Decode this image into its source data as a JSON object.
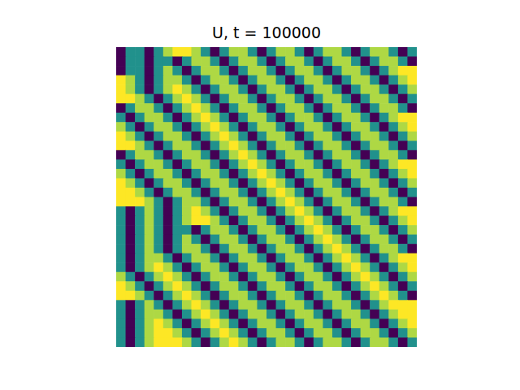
{
  "chart_data": {
    "type": "heatmap",
    "title": "U, t = 100000",
    "color": "viridis",
    "tick_labels": false,
    "cells": [
      [
        0.1,
        0.5,
        0.5,
        0.1,
        0.5,
        0.8,
        0.9,
        0.9,
        0.8,
        0.5,
        0.1,
        0.5,
        0.8,
        0.8,
        0.5,
        0.1,
        0.5,
        0.8,
        0.8,
        0.5,
        0.1,
        0.5,
        0.8,
        0.8,
        0.5,
        0.1,
        0.5,
        0.8,
        0.8,
        0.5,
        0.1,
        0.5
      ],
      [
        0.1,
        0.5,
        0.5,
        0.1,
        0.5,
        0.5,
        0.1,
        0.5,
        0.8,
        0.8,
        0.5,
        0.1,
        0.5,
        0.8,
        0.8,
        0.5,
        0.1,
        0.5,
        0.8,
        0.8,
        0.5,
        0.1,
        0.5,
        0.8,
        0.8,
        0.5,
        0.1,
        0.5,
        0.8,
        0.8,
        0.5,
        0.1
      ],
      [
        0.1,
        0.5,
        0.5,
        0.1,
        0.5,
        0.8,
        0.5,
        0.1,
        0.5,
        0.8,
        0.8,
        0.5,
        0.1,
        0.5,
        0.8,
        0.8,
        0.5,
        0.1,
        0.5,
        0.8,
        0.8,
        0.5,
        0.1,
        0.5,
        0.8,
        0.8,
        0.5,
        0.1,
        0.5,
        0.8,
        0.9,
        0.9
      ],
      [
        0.9,
        0.8,
        0.5,
        0.1,
        0.5,
        0.8,
        0.8,
        0.5,
        0.1,
        0.5,
        0.8,
        0.8,
        0.5,
        0.1,
        0.5,
        0.8,
        0.8,
        0.5,
        0.1,
        0.5,
        0.8,
        0.8,
        0.5,
        0.1,
        0.5,
        0.8,
        0.8,
        0.5,
        0.1,
        0.5,
        0.8,
        0.9
      ],
      [
        0.9,
        0.8,
        0.5,
        0.1,
        0.5,
        0.8,
        0.9,
        0.8,
        0.5,
        0.1,
        0.5,
        0.8,
        0.8,
        0.5,
        0.1,
        0.5,
        0.8,
        0.8,
        0.5,
        0.1,
        0.5,
        0.8,
        0.8,
        0.5,
        0.1,
        0.5,
        0.8,
        0.8,
        0.5,
        0.1,
        0.5,
        0.8
      ],
      [
        0.9,
        0.9,
        0.8,
        0.5,
        0.1,
        0.5,
        0.8,
        0.9,
        0.8,
        0.5,
        0.1,
        0.5,
        0.8,
        0.8,
        0.5,
        0.1,
        0.5,
        0.8,
        0.8,
        0.5,
        0.1,
        0.5,
        0.8,
        0.8,
        0.5,
        0.1,
        0.5,
        0.8,
        0.8,
        0.5,
        0.1,
        0.5
      ],
      [
        0.1,
        0.5,
        0.8,
        0.8,
        0.5,
        0.1,
        0.5,
        0.8,
        0.9,
        0.8,
        0.5,
        0.1,
        0.5,
        0.8,
        0.8,
        0.5,
        0.1,
        0.5,
        0.8,
        0.8,
        0.5,
        0.1,
        0.5,
        0.8,
        0.8,
        0.5,
        0.1,
        0.5,
        0.8,
        0.8,
        0.5,
        0.1
      ],
      [
        0.5,
        0.1,
        0.5,
        0.8,
        0.8,
        0.5,
        0.1,
        0.5,
        0.8,
        0.9,
        0.8,
        0.5,
        0.1,
        0.5,
        0.8,
        0.8,
        0.5,
        0.1,
        0.5,
        0.8,
        0.8,
        0.5,
        0.1,
        0.5,
        0.8,
        0.8,
        0.5,
        0.1,
        0.5,
        0.8,
        0.9,
        0.9
      ],
      [
        0.8,
        0.5,
        0.1,
        0.5,
        0.8,
        0.8,
        0.5,
        0.1,
        0.5,
        0.8,
        0.9,
        0.8,
        0.5,
        0.1,
        0.5,
        0.8,
        0.8,
        0.5,
        0.1,
        0.5,
        0.8,
        0.8,
        0.5,
        0.1,
        0.5,
        0.8,
        0.8,
        0.5,
        0.1,
        0.5,
        0.8,
        0.9
      ],
      [
        0.9,
        0.8,
        0.5,
        0.1,
        0.5,
        0.8,
        0.8,
        0.5,
        0.1,
        0.5,
        0.8,
        0.9,
        0.8,
        0.5,
        0.1,
        0.5,
        0.8,
        0.8,
        0.5,
        0.1,
        0.5,
        0.8,
        0.8,
        0.5,
        0.1,
        0.5,
        0.8,
        0.8,
        0.5,
        0.1,
        0.5,
        0.8
      ],
      [
        0.9,
        0.9,
        0.8,
        0.5,
        0.1,
        0.5,
        0.8,
        0.8,
        0.5,
        0.1,
        0.5,
        0.8,
        0.9,
        0.8,
        0.5,
        0.1,
        0.5,
        0.8,
        0.8,
        0.5,
        0.1,
        0.5,
        0.8,
        0.8,
        0.5,
        0.1,
        0.5,
        0.8,
        0.8,
        0.5,
        0.1,
        0.5
      ],
      [
        0.1,
        0.5,
        0.8,
        0.8,
        0.5,
        0.1,
        0.5,
        0.8,
        0.8,
        0.5,
        0.1,
        0.5,
        0.8,
        0.9,
        0.8,
        0.5,
        0.1,
        0.5,
        0.8,
        0.8,
        0.5,
        0.1,
        0.5,
        0.8,
        0.8,
        0.5,
        0.1,
        0.5,
        0.8,
        0.8,
        0.5,
        0.1
      ],
      [
        0.5,
        0.1,
        0.5,
        0.8,
        0.8,
        0.5,
        0.1,
        0.5,
        0.8,
        0.8,
        0.5,
        0.1,
        0.5,
        0.8,
        0.9,
        0.8,
        0.5,
        0.1,
        0.5,
        0.8,
        0.8,
        0.5,
        0.1,
        0.5,
        0.8,
        0.8,
        0.5,
        0.1,
        0.5,
        0.8,
        0.9,
        0.9
      ],
      [
        0.8,
        0.5,
        0.1,
        0.5,
        0.8,
        0.8,
        0.5,
        0.1,
        0.5,
        0.8,
        0.8,
        0.5,
        0.1,
        0.5,
        0.8,
        0.9,
        0.8,
        0.5,
        0.1,
        0.5,
        0.8,
        0.8,
        0.5,
        0.1,
        0.5,
        0.8,
        0.8,
        0.5,
        0.1,
        0.5,
        0.8,
        0.9
      ],
      [
        0.9,
        0.8,
        0.5,
        0.1,
        0.5,
        0.8,
        0.8,
        0.5,
        0.1,
        0.5,
        0.8,
        0.8,
        0.5,
        0.1,
        0.5,
        0.8,
        0.9,
        0.8,
        0.5,
        0.1,
        0.5,
        0.8,
        0.8,
        0.5,
        0.1,
        0.5,
        0.8,
        0.8,
        0.5,
        0.1,
        0.5,
        0.8
      ],
      [
        0.9,
        0.9,
        0.8,
        0.5,
        0.1,
        0.5,
        0.8,
        0.8,
        0.5,
        0.1,
        0.5,
        0.8,
        0.8,
        0.5,
        0.1,
        0.5,
        0.8,
        0.9,
        0.8,
        0.5,
        0.1,
        0.5,
        0.8,
        0.8,
        0.5,
        0.1,
        0.5,
        0.8,
        0.8,
        0.5,
        0.1,
        0.5
      ],
      [
        0.9,
        0.9,
        0.9,
        0.8,
        0.5,
        0.1,
        0.5,
        0.8,
        0.8,
        0.5,
        0.1,
        0.5,
        0.8,
        0.8,
        0.5,
        0.1,
        0.5,
        0.8,
        0.9,
        0.8,
        0.5,
        0.1,
        0.5,
        0.8,
        0.8,
        0.5,
        0.1,
        0.5,
        0.8,
        0.8,
        0.5,
        0.1
      ],
      [
        0.5,
        0.1,
        0.5,
        0.8,
        0.5,
        0.1,
        0.5,
        0.8,
        0.9,
        0.8,
        0.5,
        0.1,
        0.5,
        0.8,
        0.8,
        0.5,
        0.1,
        0.5,
        0.8,
        0.9,
        0.8,
        0.5,
        0.1,
        0.5,
        0.8,
        0.8,
        0.5,
        0.1,
        0.5,
        0.8,
        0.9,
        0.9
      ],
      [
        0.5,
        0.1,
        0.5,
        0.8,
        0.5,
        0.1,
        0.5,
        0.8,
        0.9,
        0.9,
        0.8,
        0.5,
        0.1,
        0.5,
        0.8,
        0.8,
        0.5,
        0.1,
        0.5,
        0.8,
        0.9,
        0.8,
        0.5,
        0.1,
        0.5,
        0.8,
        0.8,
        0.5,
        0.1,
        0.5,
        0.8,
        0.9
      ],
      [
        0.5,
        0.1,
        0.5,
        0.8,
        0.5,
        0.1,
        0.5,
        0.5,
        0.1,
        0.5,
        0.8,
        0.8,
        0.5,
        0.1,
        0.5,
        0.8,
        0.8,
        0.5,
        0.1,
        0.5,
        0.8,
        0.9,
        0.8,
        0.5,
        0.1,
        0.5,
        0.8,
        0.8,
        0.5,
        0.1,
        0.5,
        0.8
      ],
      [
        0.5,
        0.1,
        0.5,
        0.8,
        0.5,
        0.1,
        0.5,
        0.8,
        0.5,
        0.1,
        0.5,
        0.8,
        0.8,
        0.5,
        0.1,
        0.5,
        0.8,
        0.8,
        0.5,
        0.1,
        0.5,
        0.8,
        0.9,
        0.8,
        0.5,
        0.1,
        0.5,
        0.8,
        0.8,
        0.5,
        0.1,
        0.5
      ],
      [
        0.5,
        0.1,
        0.5,
        0.8,
        0.5,
        0.1,
        0.5,
        0.8,
        0.8,
        0.5,
        0.1,
        0.5,
        0.8,
        0.8,
        0.5,
        0.1,
        0.5,
        0.8,
        0.8,
        0.5,
        0.1,
        0.5,
        0.8,
        0.9,
        0.8,
        0.5,
        0.1,
        0.5,
        0.8,
        0.8,
        0.5,
        0.1
      ],
      [
        0.5,
        0.1,
        0.5,
        0.8,
        0.8,
        0.5,
        0.1,
        0.5,
        0.8,
        0.8,
        0.5,
        0.1,
        0.5,
        0.8,
        0.8,
        0.5,
        0.1,
        0.5,
        0.8,
        0.8,
        0.5,
        0.1,
        0.5,
        0.8,
        0.9,
        0.8,
        0.5,
        0.1,
        0.5,
        0.8,
        0.9,
        0.9
      ],
      [
        0.5,
        0.1,
        0.5,
        0.8,
        0.9,
        0.8,
        0.5,
        0.1,
        0.5,
        0.8,
        0.8,
        0.5,
        0.1,
        0.5,
        0.8,
        0.8,
        0.5,
        0.1,
        0.5,
        0.8,
        0.8,
        0.5,
        0.1,
        0.5,
        0.8,
        0.9,
        0.8,
        0.5,
        0.1,
        0.5,
        0.8,
        0.9
      ],
      [
        0.8,
        0.5,
        0.1,
        0.5,
        0.8,
        0.9,
        0.8,
        0.5,
        0.1,
        0.5,
        0.8,
        0.8,
        0.5,
        0.1,
        0.5,
        0.8,
        0.8,
        0.5,
        0.1,
        0.5,
        0.8,
        0.8,
        0.5,
        0.1,
        0.5,
        0.8,
        0.9,
        0.8,
        0.5,
        0.1,
        0.5,
        0.8
      ],
      [
        0.9,
        0.8,
        0.5,
        0.1,
        0.5,
        0.8,
        0.9,
        0.8,
        0.5,
        0.1,
        0.5,
        0.8,
        0.8,
        0.5,
        0.1,
        0.5,
        0.8,
        0.8,
        0.5,
        0.1,
        0.5,
        0.8,
        0.8,
        0.5,
        0.1,
        0.5,
        0.8,
        0.9,
        0.8,
        0.5,
        0.1,
        0.5
      ],
      [
        0.9,
        0.9,
        0.8,
        0.5,
        0.1,
        0.5,
        0.8,
        0.9,
        0.8,
        0.5,
        0.1,
        0.5,
        0.8,
        0.8,
        0.5,
        0.1,
        0.5,
        0.8,
        0.8,
        0.5,
        0.1,
        0.5,
        0.8,
        0.8,
        0.5,
        0.1,
        0.5,
        0.8,
        0.9,
        0.8,
        0.5,
        0.1
      ],
      [
        0.5,
        0.1,
        0.5,
        0.8,
        0.5,
        0.1,
        0.5,
        0.8,
        0.9,
        0.8,
        0.5,
        0.1,
        0.5,
        0.8,
        0.8,
        0.5,
        0.1,
        0.5,
        0.8,
        0.8,
        0.5,
        0.1,
        0.5,
        0.8,
        0.8,
        0.5,
        0.1,
        0.5,
        0.8,
        0.9,
        0.9,
        0.9
      ],
      [
        0.5,
        0.1,
        0.5,
        0.8,
        0.8,
        0.5,
        0.1,
        0.5,
        0.8,
        0.9,
        0.8,
        0.5,
        0.1,
        0.5,
        0.8,
        0.8,
        0.5,
        0.1,
        0.5,
        0.8,
        0.8,
        0.5,
        0.1,
        0.5,
        0.8,
        0.8,
        0.5,
        0.1,
        0.5,
        0.8,
        0.9,
        0.9
      ],
      [
        0.5,
        0.1,
        0.5,
        0.8,
        0.9,
        0.8,
        0.5,
        0.1,
        0.5,
        0.8,
        0.9,
        0.8,
        0.5,
        0.1,
        0.5,
        0.8,
        0.8,
        0.5,
        0.1,
        0.5,
        0.8,
        0.8,
        0.5,
        0.1,
        0.5,
        0.8,
        0.8,
        0.5,
        0.1,
        0.5,
        0.8,
        0.9
      ],
      [
        0.5,
        0.1,
        0.5,
        0.8,
        0.9,
        0.9,
        0.8,
        0.5,
        0.1,
        0.5,
        0.8,
        0.9,
        0.8,
        0.5,
        0.1,
        0.5,
        0.8,
        0.8,
        0.5,
        0.1,
        0.5,
        0.8,
        0.8,
        0.5,
        0.1,
        0.5,
        0.8,
        0.8,
        0.5,
        0.1,
        0.5,
        0.8
      ],
      [
        0.5,
        0.1,
        0.5,
        0.8,
        0.9,
        0.9,
        0.9,
        0.8,
        0.5,
        0.1,
        0.5,
        0.8,
        0.9,
        0.8,
        0.5,
        0.1,
        0.5,
        0.8,
        0.8,
        0.5,
        0.1,
        0.5,
        0.8,
        0.8,
        0.5,
        0.1,
        0.5,
        0.8,
        0.8,
        0.5,
        0.1,
        0.5
      ]
    ]
  }
}
